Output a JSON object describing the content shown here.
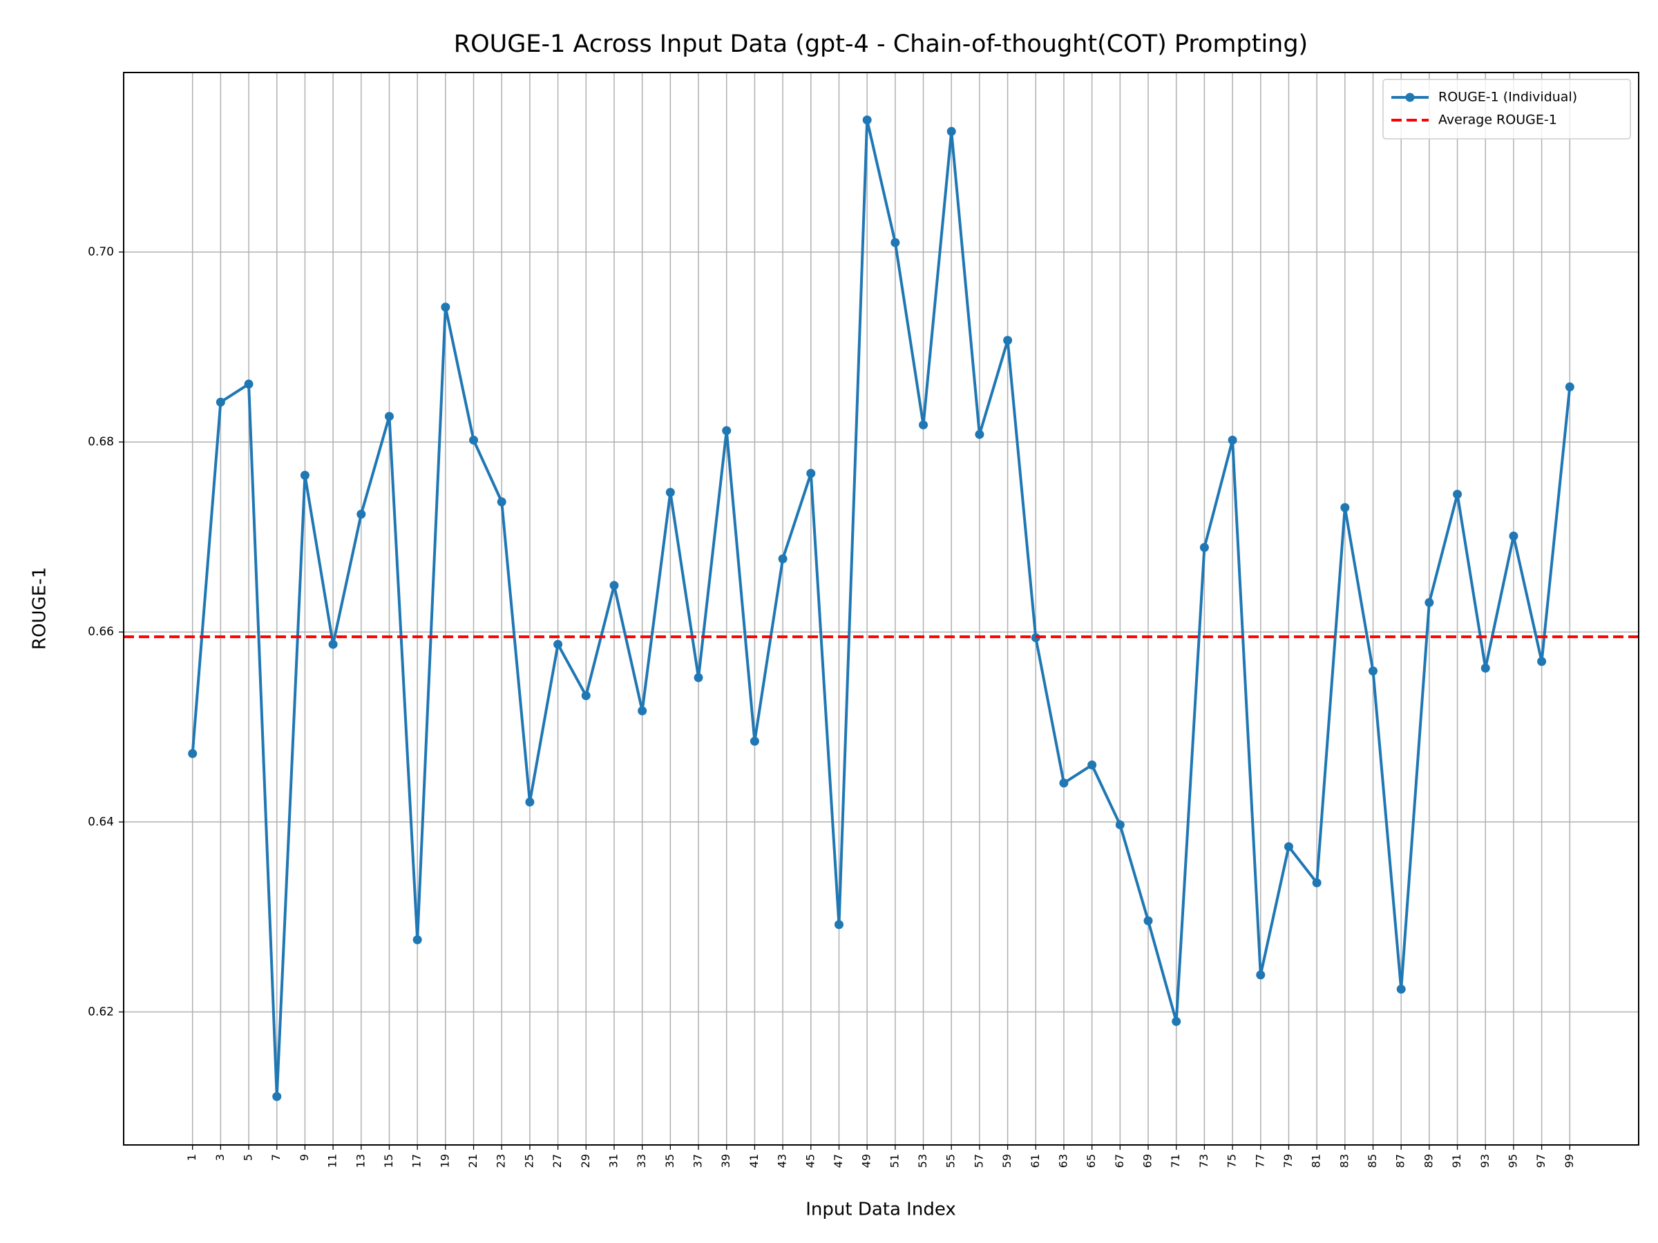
{
  "chart_data": {
    "type": "line",
    "title": "ROUGE-1 Across Input Data (gpt-4 - Chain-of-thought(COT) Prompting)",
    "x_label": "Input Data Index",
    "y_label": "ROUGE-1",
    "x": [
      1,
      3,
      5,
      7,
      9,
      11,
      13,
      15,
      17,
      19,
      21,
      23,
      25,
      27,
      29,
      31,
      33,
      35,
      37,
      39,
      41,
      43,
      45,
      47,
      49,
      51,
      53,
      55,
      57,
      59,
      61,
      63,
      65,
      67,
      69,
      71,
      73,
      75,
      77,
      79,
      81,
      83,
      85,
      87,
      89,
      91,
      93,
      95,
      97,
      99
    ],
    "series": [
      {
        "name": "ROUGE-1 (Individual)",
        "color": "#1f77b4",
        "values": [
          0.6472,
          0.6842,
          0.6861,
          0.6111,
          0.6765,
          0.6587,
          0.6724,
          0.6827,
          0.6276,
          0.6942,
          0.6802,
          0.6737,
          0.6421,
          0.6587,
          0.6533,
          0.6649,
          0.6517,
          0.6747,
          0.6552,
          0.6812,
          0.6485,
          0.6677,
          0.6767,
          0.6292,
          0.7139,
          0.701,
          0.6818,
          0.7127,
          0.6808,
          0.6907,
          0.6594,
          0.6441,
          0.646,
          0.6397,
          0.6296,
          0.619,
          0.6689,
          0.6802,
          0.6239,
          0.6374,
          0.6336,
          0.6731,
          0.6559,
          0.6224,
          0.6631,
          0.6745,
          0.6562,
          0.6701,
          0.6569,
          0.6858
        ]
      }
    ],
    "reference_lines": [
      {
        "name": "Average ROUGE-1",
        "color": "#ff0000",
        "value": 0.6595,
        "style": "dashed"
      }
    ],
    "xlim": [
      -3.9,
      103.9
    ],
    "xticks": [
      1,
      3,
      5,
      7,
      9,
      11,
      13,
      15,
      17,
      19,
      21,
      23,
      25,
      27,
      29,
      31,
      33,
      35,
      37,
      39,
      41,
      43,
      45,
      47,
      49,
      51,
      53,
      55,
      57,
      59,
      61,
      63,
      65,
      67,
      69,
      71,
      73,
      75,
      77,
      79,
      81,
      83,
      85,
      87,
      89,
      91,
      93,
      95,
      97,
      99
    ],
    "ylim": [
      0.606,
      0.7189
    ],
    "yticks": [
      0.62,
      0.64,
      0.66,
      0.68,
      {
        "value": 0.7,
        "label": "0.70"
      }
    ],
    "grid": true,
    "legend": "upper right"
  }
}
